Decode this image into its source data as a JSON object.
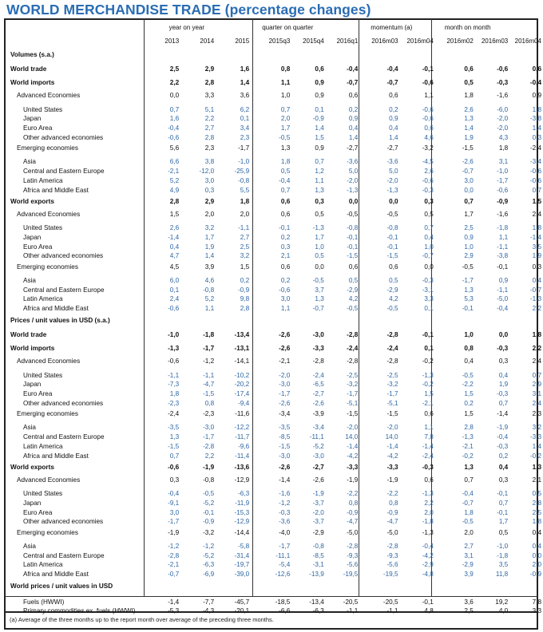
{
  "title": "WORLD MERCHANDISE TRADE (percentage changes)",
  "groups": [
    "year on year",
    "quarter on quarter",
    "momentum (a)",
    "month on month"
  ],
  "columns": [
    "2013",
    "2014",
    "2015",
    "2015q3",
    "2015q4",
    "2016q1",
    "2016m03",
    "2016m04",
    "2016m02",
    "2016m03",
    "2016m04"
  ],
  "rows": [
    {
      "label": "Volumes (s.a.)",
      "type": "section",
      "values": []
    },
    {
      "label": "World trade",
      "type": "bold",
      "values": [
        "2,5",
        "2,9",
        "1,6",
        "0,8",
        "0,6",
        "-0,4",
        "-0,4",
        "-0,1",
        "0,6",
        "-0,6",
        "0,6"
      ]
    },
    {
      "label": "World imports",
      "type": "bold",
      "values": [
        "2,2",
        "2,8",
        "1,4",
        "1,1",
        "0,9",
        "-0,7",
        "-0,7",
        "-0,6",
        "0,5",
        "-0,3",
        "-0,4"
      ]
    },
    {
      "label": "Advanced Economies",
      "type": "sub",
      "values": [
        "0,0",
        "3,3",
        "3,6",
        "1,0",
        "0,9",
        "0,6",
        "0,6",
        "1,1",
        "1,8",
        "-1,6",
        "0,9"
      ]
    },
    {
      "label": "United States",
      "type": "country gap",
      "values": [
        "0,7",
        "5,1",
        "6,2",
        "0,7",
        "0,1",
        "0,2",
        "0,2",
        "-0,6",
        "2,6",
        "-6,0",
        "1,8"
      ]
    },
    {
      "label": "Japan",
      "type": "country",
      "values": [
        "1,6",
        "2,2",
        "0,1",
        "2,0",
        "-0,9",
        "0,9",
        "0,9",
        "-0,6",
        "1,3",
        "-2,0",
        "-3,8"
      ]
    },
    {
      "label": "Euro Area",
      "type": "country",
      "values": [
        "-0,4",
        "2,7",
        "3,4",
        "1,7",
        "1,4",
        "0,4",
        "0,4",
        "0,6",
        "1,4",
        "-2,0",
        "1,4"
      ]
    },
    {
      "label": "Other advanced economies",
      "type": "country",
      "values": [
        "-0,6",
        "2,8",
        "2,3",
        "-0,5",
        "1,5",
        "1,4",
        "1,4",
        "4,6",
        "1,9",
        "4,3",
        "0,3"
      ]
    },
    {
      "label": "Emerging economies",
      "type": "sub",
      "values": [
        "5,6",
        "2,3",
        "-1,7",
        "1,3",
        "0,9",
        "-2,7",
        "-2,7",
        "-3,2",
        "-1,5",
        "1,8",
        "-2,4"
      ]
    },
    {
      "label": "Asia",
      "type": "country gap",
      "values": [
        "6,6",
        "3,8",
        "-1,0",
        "1,8",
        "0,7",
        "-3,6",
        "-3,6",
        "-4,5",
        "-2,6",
        "3,1",
        "-3,4"
      ]
    },
    {
      "label": "Central and Eastern Europe",
      "type": "country",
      "values": [
        "-2,1",
        "-12,0",
        "-25,9",
        "0,5",
        "1,2",
        "5,0",
        "5,0",
        "2,6",
        "-0,7",
        "-1,0",
        "-0,6"
      ]
    },
    {
      "label": "Latin America",
      "type": "country",
      "values": [
        "5,2",
        "3,0",
        "-0,8",
        "-0,4",
        "1,1",
        "-2,0",
        "-2,0",
        "-0,6",
        "3,0",
        "-1,7",
        "-0,6"
      ]
    },
    {
      "label": "Africa and Middle East",
      "type": "country",
      "values": [
        "4,9",
        "0,3",
        "5,5",
        "0,7",
        "1,3",
        "-1,3",
        "-1,3",
        "-0,3",
        "0,0",
        "-0,6",
        "0,7"
      ]
    },
    {
      "label": "World exports",
      "type": "bold",
      "values": [
        "2,8",
        "2,9",
        "1,8",
        "0,6",
        "0,3",
        "0,0",
        "0,0",
        "0,3",
        "0,7",
        "-0,9",
        "1,5"
      ]
    },
    {
      "label": "Advanced Economies",
      "type": "sub",
      "values": [
        "1,5",
        "2,0",
        "2,0",
        "0,6",
        "0,5",
        "-0,5",
        "-0,5",
        "0,5",
        "1,7",
        "-1,6",
        "2,4"
      ]
    },
    {
      "label": "United States",
      "type": "country gap",
      "values": [
        "2,6",
        "3,2",
        "-1,1",
        "-0,1",
        "-1,3",
        "-0,8",
        "-0,8",
        "0,7",
        "2,5",
        "-1,8",
        "1,8"
      ]
    },
    {
      "label": "Japan",
      "type": "country",
      "values": [
        "-1,4",
        "1,7",
        "2,7",
        "0,2",
        "1,7",
        "-0,1",
        "-0,1",
        "0,4",
        "0,9",
        "1,1",
        "-1,4"
      ]
    },
    {
      "label": "Euro Area",
      "type": "country",
      "values": [
        "0,4",
        "1,9",
        "2,5",
        "0,3",
        "1,0",
        "-0,1",
        "-0,1",
        "1,0",
        "1,0",
        "-1,1",
        "3,5"
      ]
    },
    {
      "label": "Other advanced economies",
      "type": "country",
      "values": [
        "4,7",
        "1,4",
        "3,2",
        "2,1",
        "0,5",
        "-1,5",
        "-1,5",
        "-0,7",
        "2,9",
        "-3,8",
        "1,9"
      ]
    },
    {
      "label": "Emerging economies",
      "type": "sub",
      "values": [
        "4,5",
        "3,9",
        "1,5",
        "0,6",
        "0,0",
        "0,6",
        "0,6",
        "0,0",
        "-0,5",
        "-0,1",
        "0,3"
      ]
    },
    {
      "label": "Asia",
      "type": "country gap",
      "values": [
        "6,0",
        "4,6",
        "0,2",
        "0,2",
        "-0,5",
        "0,5",
        "0,5",
        "-0,3",
        "-1,7",
        "0,9",
        "0,4"
      ]
    },
    {
      "label": "Central and Eastern Europe",
      "type": "country",
      "values": [
        "0,1",
        "-0,8",
        "-0,9",
        "-0,6",
        "3,7",
        "-2,9",
        "-2,9",
        "-3,1",
        "1,3",
        "-1,1",
        "-0,7"
      ]
    },
    {
      "label": "Latin America",
      "type": "country",
      "values": [
        "2,4",
        "5,2",
        "9,8",
        "3,0",
        "1,3",
        "4,2",
        "4,2",
        "3,3",
        "5,3",
        "-5,0",
        "-1,3"
      ]
    },
    {
      "label": "Africa and Middle East",
      "type": "country",
      "values": [
        "-0,6",
        "1,1",
        "2,8",
        "1,1",
        "-0,7",
        "-0,5",
        "-0,5",
        "0,1",
        "-0,1",
        "-0,4",
        "2,2"
      ]
    },
    {
      "label": "Prices / unit values in USD (s.a.)",
      "type": "section",
      "values": []
    },
    {
      "label": "World trade",
      "type": "bold",
      "values": [
        "-1,0",
        "-1,8",
        "-13,4",
        "-2,6",
        "-3,0",
        "-2,8",
        "-2,8",
        "-0,1",
        "1,0",
        "0,0",
        "1,8"
      ]
    },
    {
      "label": "World imports",
      "type": "bold",
      "values": [
        "-1,3",
        "-1,7",
        "-13,1",
        "-2,6",
        "-3,3",
        "-2,4",
        "-2,4",
        "0,1",
        "0,8",
        "-0,3",
        "2,2"
      ]
    },
    {
      "label": "Advanced Economies",
      "type": "sub",
      "values": [
        "-0,6",
        "-1,2",
        "-14,1",
        "-2,1",
        "-2,8",
        "-2,8",
        "-2,8",
        "-0,2",
        "0,4",
        "0,3",
        "2,4"
      ]
    },
    {
      "label": "United States",
      "type": "country gap",
      "values": [
        "-1,1",
        "-1,1",
        "-10,2",
        "-2,0",
        "-2,4",
        "-2,5",
        "-2,5",
        "-1,3",
        "-0,5",
        "0,4",
        "0,7"
      ]
    },
    {
      "label": "Japan",
      "type": "country",
      "values": [
        "-7,3",
        "-4,7",
        "-20,2",
        "-3,0",
        "-6,5",
        "-3,2",
        "-3,2",
        "-0,2",
        "-2,2",
        "1,9",
        "2,9"
      ]
    },
    {
      "label": "Euro Area",
      "type": "country",
      "values": [
        "1,8",
        "-1,5",
        "-17,4",
        "-1,7",
        "-2,7",
        "-1,7",
        "-1,7",
        "1,5",
        "1,5",
        "-0,3",
        "3,1"
      ]
    },
    {
      "label": "Other advanced economies",
      "type": "country",
      "values": [
        "-2,3",
        "0,8",
        "-9,4",
        "-2,6",
        "-2,6",
        "-5,1",
        "-5,1",
        "-2,1",
        "0,2",
        "0,7",
        "2,4"
      ]
    },
    {
      "label": "Emerging economies",
      "type": "sub",
      "values": [
        "-2,4",
        "-2,3",
        "-11,6",
        "-3,4",
        "-3,9",
        "-1,5",
        "-1,5",
        "0,6",
        "1,5",
        "-1,4",
        "2,3"
      ]
    },
    {
      "label": "Asia",
      "type": "country gap",
      "values": [
        "-3,5",
        "-3,0",
        "-12,2",
        "-3,5",
        "-3,4",
        "-2,0",
        "-2,0",
        "1,1",
        "2,8",
        "-1,9",
        "3,2"
      ]
    },
    {
      "label": "Central and Eastern Europe",
      "type": "country",
      "values": [
        "1,3",
        "-1,7",
        "-11,7",
        "-8,5",
        "-11,1",
        "14,0",
        "14,0",
        "7,8",
        "-1,3",
        "-0,4",
        "-3,3"
      ]
    },
    {
      "label": "Latin America",
      "type": "country",
      "values": [
        "-1,5",
        "-2,8",
        "-9,6",
        "-1,5",
        "-5,2",
        "-1,4",
        "-1,4",
        "-1,4",
        "-2,1",
        "-0,3",
        "1,4"
      ]
    },
    {
      "label": "Africa and Middle East",
      "type": "country",
      "values": [
        "0,7",
        "2,2",
        "-11,4",
        "-3,0",
        "-3,0",
        "-4,2",
        "-4,2",
        "-2,4",
        "-0,2",
        "0,2",
        "-0,2"
      ]
    },
    {
      "label": "World exports",
      "type": "bold",
      "values": [
        "-0,6",
        "-1,9",
        "-13,6",
        "-2,6",
        "-2,7",
        "-3,3",
        "-3,3",
        "-0,3",
        "1,3",
        "0,4",
        "1,3"
      ]
    },
    {
      "label": "Advanced Economies",
      "type": "sub",
      "values": [
        "0,3",
        "-0,8",
        "-12,9",
        "-1,4",
        "-2,6",
        "-1,9",
        "-1,9",
        "0,6",
        "0,7",
        "0,3",
        "2,1"
      ]
    },
    {
      "label": "United States",
      "type": "country gap",
      "values": [
        "-0,4",
        "-0,5",
        "-6,3",
        "-1,6",
        "-1,9",
        "-2,2",
        "-2,2",
        "-1,3",
        "-0,4",
        "-0,1",
        "0,5"
      ]
    },
    {
      "label": "Japan",
      "type": "country",
      "values": [
        "-9,1",
        "-5,2",
        "-11,9",
        "-1,2",
        "-3,7",
        "0,8",
        "0,8",
        "2,2",
        "-0,7",
        "0,7",
        "2,8"
      ]
    },
    {
      "label": "Euro Area",
      "type": "country",
      "values": [
        "3,0",
        "-0,1",
        "-15,3",
        "-0,3",
        "-2,0",
        "-0,9",
        "-0,9",
        "2,0",
        "1,8",
        "-0,1",
        "2,5"
      ]
    },
    {
      "label": "Other advanced economies",
      "type": "country",
      "values": [
        "-1,7",
        "-0,9",
        "-12,9",
        "-3,6",
        "-3,7",
        "-4,7",
        "-4,7",
        "-1,8",
        "-0,5",
        "1,7",
        "1,8"
      ]
    },
    {
      "label": "Emerging economies",
      "type": "sub",
      "values": [
        "-1,9",
        "-3,2",
        "-14,4",
        "-4,0",
        "-2,9",
        "-5,0",
        "-5,0",
        "-1,3",
        "2,0",
        "0,5",
        "0,4"
      ]
    },
    {
      "label": "Asia",
      "type": "country gap",
      "values": [
        "-1,2",
        "-1,2",
        "-5,8",
        "-1,7",
        "-0,8",
        "-2,8",
        "-2,8",
        "-0,4",
        "2,7",
        "-1,0",
        "0,4"
      ]
    },
    {
      "label": "Central and Eastern Europe",
      "type": "country",
      "values": [
        "-2,8",
        "-5,2",
        "-31,4",
        "-11,1",
        "-8,5",
        "-9,3",
        "-9,3",
        "-4,2",
        "3,1",
        "-1,8",
        "0,0"
      ]
    },
    {
      "label": "Latin America",
      "type": "country",
      "values": [
        "-2,1",
        "-6,3",
        "-19,7",
        "-5,4",
        "-3,1",
        "-5,6",
        "-5,6",
        "-2,9",
        "-2,9",
        "3,5",
        "2,0"
      ]
    },
    {
      "label": "Africa and Middle East",
      "type": "country",
      "values": [
        "-0,7",
        "-6,9",
        "-39,0",
        "-12,6",
        "-13,9",
        "-19,5",
        "-19,5",
        "-4,8",
        "3,9",
        "11,8",
        "-0,9"
      ]
    },
    {
      "label": "World prices / unit values in USD",
      "type": "section",
      "values": []
    },
    {
      "label": "Fuels (HWWI)",
      "type": "country gap plain",
      "values": [
        "-1,4",
        "-7,7",
        "-45,7",
        "-18,5",
        "-13,4",
        "-20,5",
        "-20,5",
        "-0,1",
        "3,6",
        "19,2",
        "7,8"
      ]
    },
    {
      "label": "Primary commodities ex. fuels (HWWI)",
      "type": "country plain",
      "values": [
        "-5,3",
        "-4,3",
        "-20,1",
        "-6,6",
        "-6,3",
        "-1,1",
        "-1,1",
        "4,8",
        "2,5",
        "4,0",
        "3,3"
      ]
    }
  ],
  "footnote": "(a) Average of the three months up to the report month over average of the preceding three months.",
  "colors": {
    "title": "#2a6db3",
    "country_values": "#2e66a3",
    "border": "#222222"
  }
}
